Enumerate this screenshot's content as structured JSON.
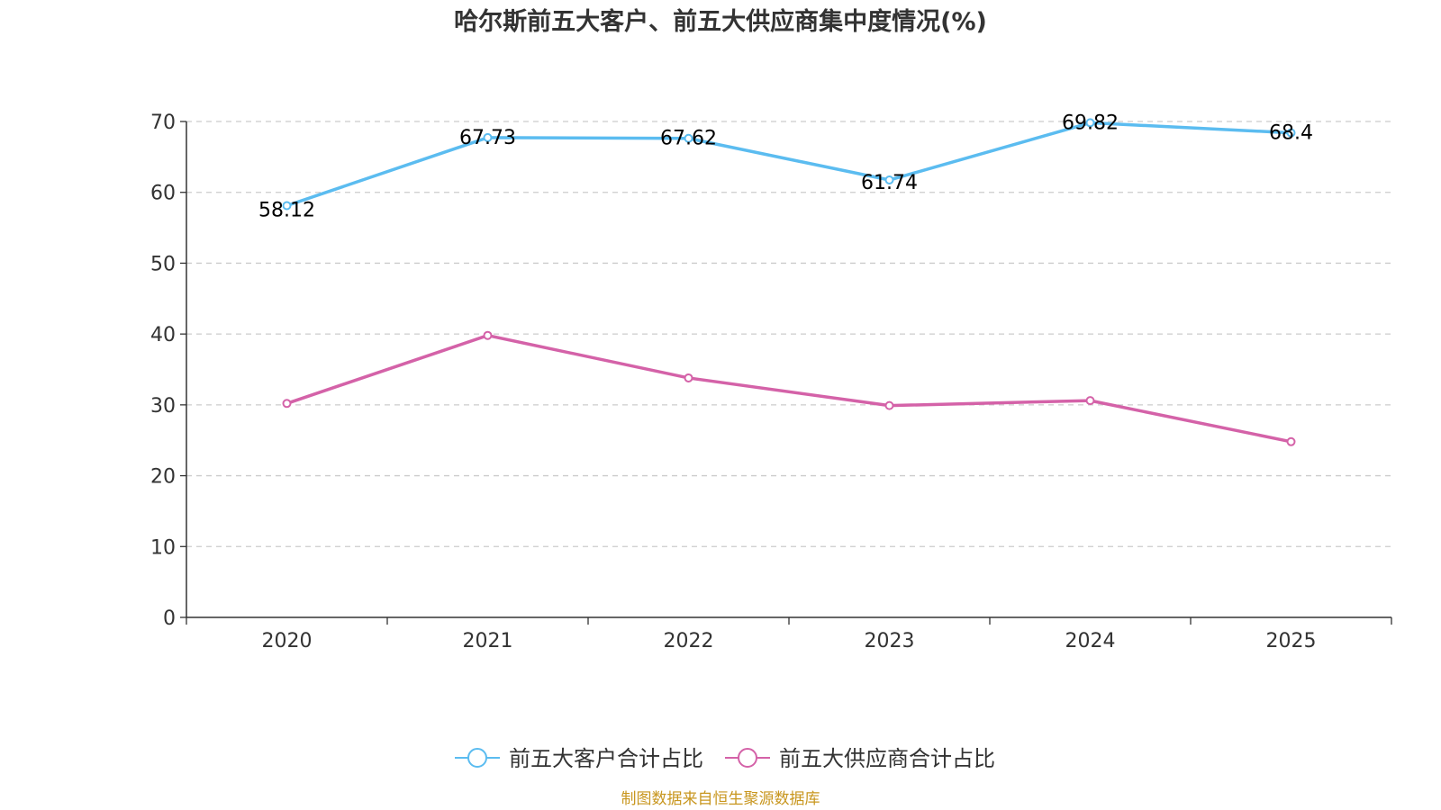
{
  "chart_data": {
    "type": "line",
    "title": "哈尔斯前五大客户、前五大供应商集中度情况(%)",
    "categories": [
      "2020",
      "2021",
      "2022",
      "2023",
      "2024",
      "2025"
    ],
    "ylim": [
      0,
      70
    ],
    "yticks": [
      0,
      10,
      20,
      30,
      40,
      50,
      60,
      70
    ],
    "grid": true,
    "legend_position": "bottom",
    "series": [
      {
        "name": "前五大客户合计占比",
        "color": "#5bbcf0",
        "values": [
          58.12,
          67.73,
          67.62,
          61.74,
          69.82,
          68.4
        ],
        "labels": [
          "58.12",
          "67.73",
          "67.62",
          "61.74",
          "69.82",
          "68.4"
        ],
        "show_labels": true
      },
      {
        "name": "前五大供应商合计占比",
        "color": "#d462a8",
        "values": [
          30.2,
          39.8,
          33.8,
          29.9,
          30.6,
          24.8
        ],
        "show_labels": false
      }
    ],
    "source_note": "制图数据来自恒生聚源数据库"
  }
}
